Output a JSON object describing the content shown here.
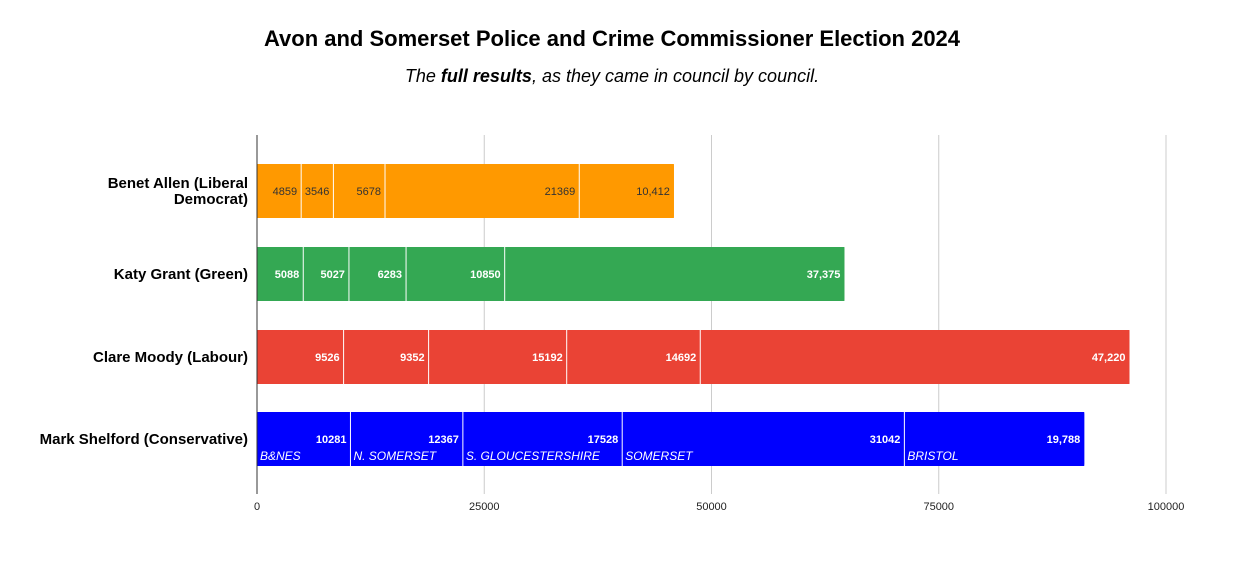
{
  "title": "Avon and Somerset Police and Crime Commissioner Election 2024",
  "subtitle": {
    "prefix": "The ",
    "bold": "full results",
    "suffix": ", as they came in council by council."
  },
  "chart_data": {
    "type": "bar",
    "orientation": "horizontal",
    "stacked": true,
    "title": "Avon and Somerset Police and Crime Commissioner Election 2024",
    "subtitle": "The full results, as they came in council by council.",
    "xlim": [
      0,
      100000
    ],
    "x_ticks": [
      0,
      25000,
      50000,
      75000,
      100000
    ],
    "x_tick_labels": [
      "0",
      "25000",
      "50000",
      "75000",
      "100000"
    ],
    "grid": true,
    "categories": [
      {
        "label": "Benet Allen (Liberal Democrat)",
        "label_lines": [
          "Benet Allen (Liberal",
          "Democrat)"
        ],
        "color": "#ff9900",
        "value_color": "#333333",
        "value_bold": false,
        "segments": [
          4859,
          3546,
          5678,
          21369,
          10412
        ],
        "segment_labels": [
          "4859",
          "3546",
          "5678",
          "21369",
          "10,412"
        ]
      },
      {
        "label": "Katy Grant (Green)",
        "label_lines": [
          "Katy Grant (Green)"
        ],
        "color": "#34a853",
        "value_color": "#ffffff",
        "value_bold": true,
        "segments": [
          5088,
          5027,
          6283,
          10850,
          37375
        ],
        "segment_labels": [
          "5088",
          "5027",
          "6283",
          "10850",
          "37,375"
        ]
      },
      {
        "label": "Clare Moody (Labour)",
        "label_lines": [
          "Clare Moody (Labour)"
        ],
        "color": "#ea4335",
        "value_color": "#ffffff",
        "value_bold": true,
        "segments": [
          9526,
          9352,
          15192,
          14692,
          47220
        ],
        "segment_labels": [
          "9526",
          "9352",
          "15192",
          "14692",
          "47,220"
        ]
      },
      {
        "label": "Mark Shelford (Conservative)",
        "label_lines": [
          "Mark Shelford (Conservative)"
        ],
        "color": "#0000ff",
        "value_color": "#ffffff",
        "value_bold": true,
        "segments": [
          10281,
          12367,
          17528,
          31042,
          19788
        ],
        "segment_labels": [
          "10281",
          "12367",
          "17528",
          "31042",
          "19,788"
        ]
      }
    ],
    "series": [
      {
        "name": "B&NES"
      },
      {
        "name": "N. SOMERSET"
      },
      {
        "name": "S. GLOUCESTERSHIRE"
      },
      {
        "name": "SOMERSET"
      },
      {
        "name": "BRISTOL"
      }
    ]
  }
}
